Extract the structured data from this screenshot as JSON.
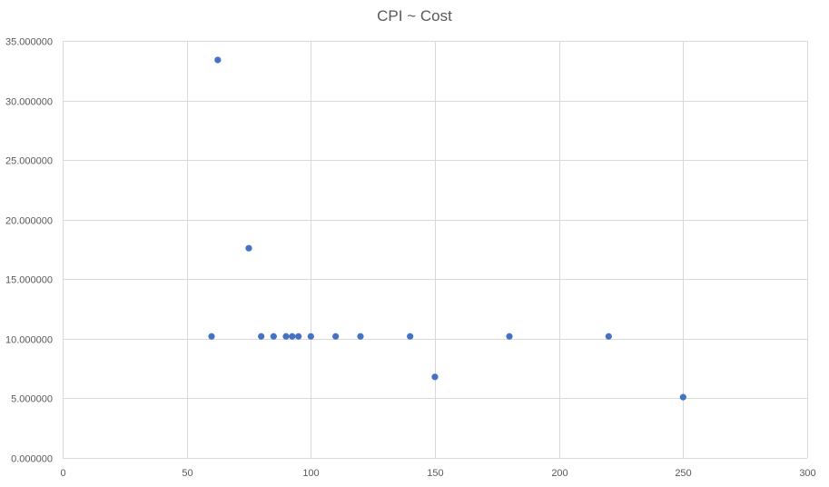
{
  "chart_data": {
    "type": "scatter",
    "title": "CPI ~ Cost",
    "xlabel": "",
    "ylabel": "",
    "xlim": [
      0,
      300
    ],
    "ylim": [
      0,
      35
    ],
    "x_ticks": [
      0,
      50,
      100,
      150,
      200,
      250,
      300
    ],
    "x_tick_labels": [
      "0",
      "50",
      "100",
      "150",
      "200",
      "250",
      "300"
    ],
    "y_ticks": [
      0,
      5,
      10,
      15,
      20,
      25,
      30,
      35
    ],
    "y_tick_labels": [
      "0.000000",
      "5.000000",
      "10.000000",
      "15.000000",
      "20.000000",
      "25.000000",
      "30.000000",
      "35.000000"
    ],
    "grid": true,
    "legend": "none",
    "marker_color": "#4472c4",
    "grid_color": "#d9d9d9",
    "points": [
      {
        "x": 60,
        "y": 10.2
      },
      {
        "x": 62.5,
        "y": 33.4
      },
      {
        "x": 75,
        "y": 17.6
      },
      {
        "x": 80,
        "y": 10.2
      },
      {
        "x": 85,
        "y": 10.2
      },
      {
        "x": 90,
        "y": 10.2
      },
      {
        "x": 92.5,
        "y": 10.2
      },
      {
        "x": 95,
        "y": 10.2
      },
      {
        "x": 100,
        "y": 10.2
      },
      {
        "x": 110,
        "y": 10.2
      },
      {
        "x": 120,
        "y": 10.2
      },
      {
        "x": 140,
        "y": 10.2
      },
      {
        "x": 150,
        "y": 6.8
      },
      {
        "x": 180,
        "y": 10.2
      },
      {
        "x": 220,
        "y": 10.2
      },
      {
        "x": 250,
        "y": 5.1
      }
    ]
  }
}
